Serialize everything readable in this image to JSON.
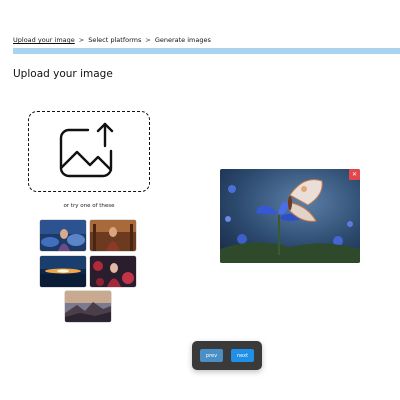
{
  "breadcrumb": {
    "steps": [
      "Upload your image",
      "Select platforms",
      "Generate images"
    ],
    "separator": ">"
  },
  "progress": {
    "fraction": 1.0,
    "color": "#a8d4f0"
  },
  "page_title": "Upload your image",
  "upload": {
    "icon": "image-upload-icon",
    "try_label": "or try one of these"
  },
  "sample_images": [
    {
      "name": "woman-in-forest"
    },
    {
      "name": "woman-in-warm-light"
    },
    {
      "name": "sunset-horizon"
    },
    {
      "name": "woman-in-red-flowers"
    },
    {
      "name": "mountain-landscape"
    }
  ],
  "preview": {
    "subject": "butterfly-on-blue-flower",
    "close_symbol": "✕",
    "close_color": "#e2474b"
  },
  "navigation": {
    "prev_label": "prev",
    "next_label": "next",
    "accent": "#1f8fe8"
  }
}
